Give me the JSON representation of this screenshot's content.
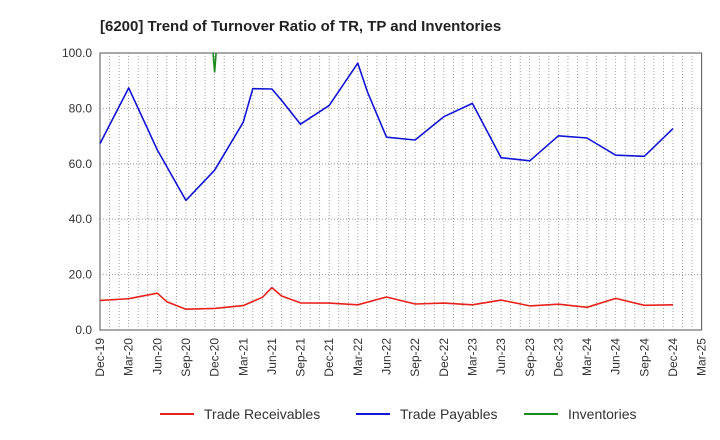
{
  "chart_data": {
    "type": "line",
    "title": "[6200]  Trend of Turnover Ratio of TR, TP and Inventories",
    "xlabel": "",
    "ylabel": "",
    "ylim": [
      0,
      100
    ],
    "yticks": [
      "0.0",
      "20.0",
      "40.0",
      "60.0",
      "80.0",
      "100.0"
    ],
    "ytick_values": [
      0,
      20,
      40,
      60,
      80,
      100
    ],
    "xticks": [
      "Dec-19",
      "Mar-20",
      "Jun-20",
      "Sep-20",
      "Dec-20",
      "Mar-21",
      "Jun-21",
      "Sep-21",
      "Dec-21",
      "Mar-22",
      "Jun-22",
      "Sep-22",
      "Dec-22",
      "Mar-23",
      "Jun-23",
      "Sep-23",
      "Dec-23",
      "Mar-24",
      "Jun-24",
      "Sep-24",
      "Dec-24",
      "Mar-25"
    ],
    "grid": true,
    "legend_position": "bottom",
    "x": [
      "Dec-19",
      "Jan-20",
      "Feb-20",
      "Mar-20",
      "Apr-20",
      "May-20",
      "Jun-20",
      "Jul-20",
      "Aug-20",
      "Sep-20",
      "Oct-20",
      "Nov-20",
      "Dec-20",
      "Jan-21",
      "Feb-21",
      "Mar-21",
      "Apr-21",
      "May-21",
      "Jun-21",
      "Jul-21",
      "Aug-21",
      "Sep-21",
      "Oct-21",
      "Nov-21",
      "Dec-21",
      "Jan-22",
      "Feb-22",
      "Mar-22",
      "Apr-22",
      "May-22",
      "Jun-22",
      "Jul-22",
      "Aug-22",
      "Sep-22",
      "Oct-22",
      "Nov-22",
      "Dec-22",
      "Jan-23",
      "Feb-23",
      "Mar-23",
      "Apr-23",
      "May-23",
      "Jun-23",
      "Jul-23",
      "Aug-23",
      "Sep-23",
      "Oct-23",
      "Nov-23",
      "Dec-23",
      "Jan-24",
      "Feb-24",
      "Mar-24",
      "Apr-24",
      "May-24",
      "Jun-24",
      "Jul-24",
      "Aug-24",
      "Sep-24",
      "Oct-24",
      "Nov-24",
      "Dec-24"
    ],
    "series": [
      {
        "name": "Trade Receivables",
        "color": "#e8221b",
        "values": [
          10.7,
          null,
          null,
          11.3,
          null,
          null,
          13.3,
          10.2,
          null,
          7.5,
          null,
          null,
          7.8,
          null,
          null,
          8.8,
          null,
          11.8,
          15.3,
          12.3,
          null,
          9.8,
          null,
          null,
          9.7,
          null,
          null,
          9.1,
          null,
          null,
          11.9,
          null,
          null,
          9.4,
          null,
          null,
          9.7,
          null,
          null,
          9.1,
          null,
          null,
          10.8,
          null,
          null,
          8.7,
          null,
          null,
          9.3,
          null,
          null,
          8.2,
          null,
          null,
          11.4,
          null,
          null,
          8.9,
          null,
          null,
          9.1
        ]
      },
      {
        "name": "Trade Payables",
        "color": "#1014d6",
        "values": [
          67.3,
          null,
          null,
          87.4,
          null,
          null,
          65.0,
          null,
          null,
          46.8,
          null,
          null,
          57.7,
          null,
          null,
          75.0,
          87.1,
          null,
          87.0,
          83.0,
          null,
          74.3,
          null,
          null,
          81.1,
          null,
          null,
          96.3,
          86.0,
          null,
          69.6,
          null,
          null,
          68.6,
          null,
          null,
          77.0,
          null,
          null,
          81.8,
          null,
          null,
          62.2,
          null,
          null,
          61.1,
          null,
          null,
          70.1,
          null,
          null,
          69.3,
          null,
          null,
          63.1,
          null,
          null,
          62.7,
          null,
          null,
          72.7
        ]
      },
      {
        "name": "Inventories",
        "color": "#1a8a1a",
        "values": [
          null,
          null,
          null,
          null,
          null,
          null,
          null,
          null,
          null,
          null,
          null,
          null,
          93.0,
          null,
          null,
          null,
          null,
          null,
          null,
          null,
          null,
          null,
          null,
          null,
          null,
          null,
          null,
          null,
          null,
          null,
          null,
          null,
          null,
          null,
          null,
          null,
          null,
          null,
          null,
          null,
          null,
          null,
          null,
          null,
          null,
          null,
          null,
          null,
          null,
          null,
          null,
          null,
          null,
          null,
          null,
          null,
          null,
          null,
          null,
          null,
          null
        ]
      }
    ]
  }
}
